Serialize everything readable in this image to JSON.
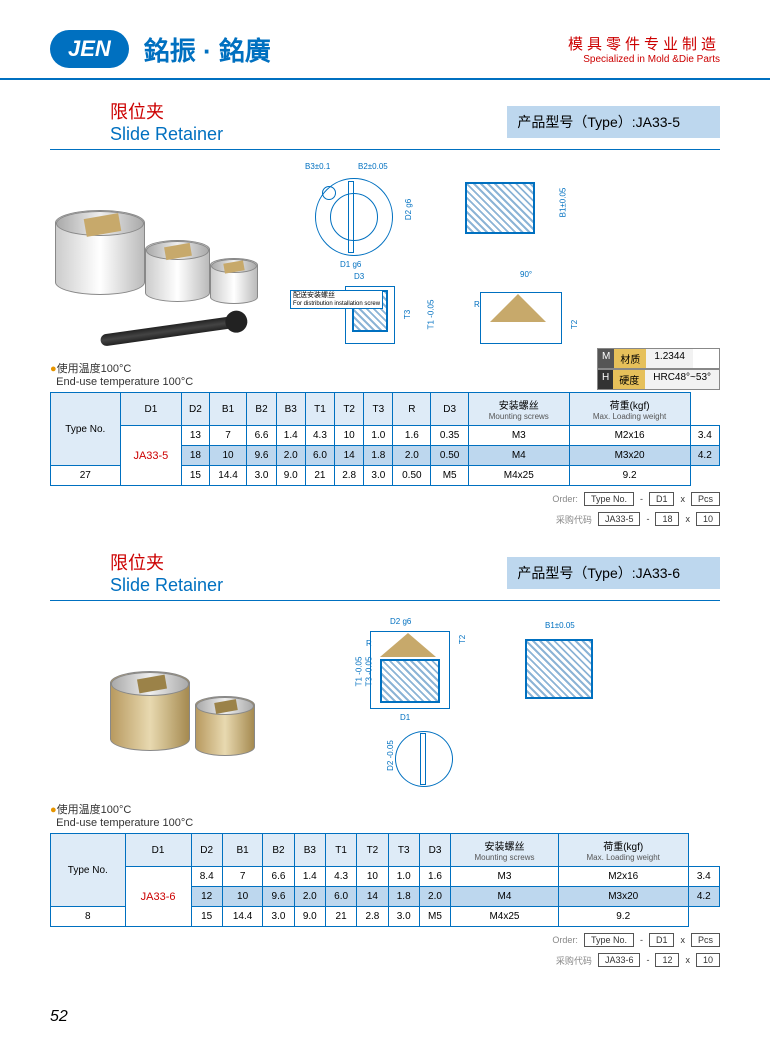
{
  "header": {
    "logo": "JEN",
    "company": "銘振 · 銘廣",
    "tagline_cn": "模具零件专业制造",
    "tagline_en": "Specialized in Mold &Die Parts"
  },
  "material_box": {
    "m_tag": "M",
    "m_label": "材质",
    "m_value": "1.2344",
    "h_tag": "H",
    "h_label": "硬度",
    "h_value": "HRC48°~53°"
  },
  "product_a": {
    "title_cn": "限位夹",
    "title_en": "Slide  Retainer",
    "type_label": "产品型号（Type）:JA33-5",
    "temp_note_cn": "使用温度100°C",
    "temp_note_en": "End-use temperature 100°C",
    "dia_labels": {
      "b3": "B3±0.1",
      "b2": "B2±0.05",
      "d2g6": "D2 g6",
      "d1g6": "D1 g6",
      "b1": "B1±0.05",
      "d3": "D3",
      "t3": "T3",
      "t1": "T1 -0.05",
      "ninety": "90°",
      "r": "R",
      "t2": "T2",
      "dist_cn": "配送安装螺丝",
      "dist_en": "For distribution\ninstallation screw"
    },
    "table": {
      "headers": [
        "Type No.",
        "D1",
        "D2",
        "B1",
        "B2",
        "B3",
        "T1",
        "T2",
        "T3",
        "R",
        "D3",
        "安装螺丝",
        "荷重(kgf)"
      ],
      "sub_headers": {
        "11": "Mounting screws",
        "12": "Max. Loading weight"
      },
      "type_no": "JA33-5",
      "rows": [
        [
          "13",
          "7",
          "6.6",
          "1.4",
          "4.3",
          "10",
          "1.0",
          "1.6",
          "0.35",
          "M3",
          "M2x16",
          "3.4"
        ],
        [
          "18",
          "10",
          "9.6",
          "2.0",
          "6.0",
          "14",
          "1.8",
          "2.0",
          "0.50",
          "M4",
          "M3x20",
          "4.2"
        ],
        [
          "27",
          "15",
          "14.4",
          "3.0",
          "9.0",
          "21",
          "2.8",
          "3.0",
          "0.50",
          "M5",
          "M4x25",
          "9.2"
        ]
      ],
      "hl_index": 1
    },
    "order": {
      "label1": "Order:",
      "b1": "Type No.",
      "dash1": "-",
      "b2": "D1",
      "x1": "x",
      "b3": "Pcs",
      "label2": "采购代码",
      "e1": "JA33-5",
      "dash2": "-",
      "e2": "18",
      "x2": "x",
      "e3": "10"
    }
  },
  "product_b": {
    "title_cn": "限位夹",
    "title_en": "Slide  Retainer",
    "type_label": "产品型号（Type）:JA33-6",
    "temp_note_cn": "使用温度100°C",
    "temp_note_en": "End-use temperature 100°C",
    "dia_labels": {
      "d2g6": "D2 g6",
      "r": "R",
      "t2": "T2",
      "b1": "B1±0.05",
      "t1": "T1 -0.05",
      "t3": "T3 -0.05",
      "d1": "D1",
      "d2s": "D2 -0.05"
    },
    "table": {
      "headers": [
        "Type No.",
        "D1",
        "D2",
        "B1",
        "B2",
        "B3",
        "T1",
        "T2",
        "T3",
        "D3",
        "安装螺丝",
        "荷重(kgf)"
      ],
      "sub_headers": {
        "10": "Mounting screws",
        "11": "Max. Loading weight"
      },
      "type_no": "JA33-6",
      "rows": [
        [
          "8.4",
          "7",
          "6.6",
          "1.4",
          "4.3",
          "10",
          "1.0",
          "1.6",
          "M3",
          "M2x16",
          "3.4"
        ],
        [
          "12",
          "10",
          "9.6",
          "2.0",
          "6.0",
          "14",
          "1.8",
          "2.0",
          "M4",
          "M3x20",
          "4.2"
        ],
        [
          "8",
          "15",
          "14.4",
          "3.0",
          "9.0",
          "21",
          "2.8",
          "3.0",
          "M5",
          "M4x25",
          "9.2"
        ]
      ],
      "hl_index": 1
    },
    "order": {
      "label1": "Order:",
      "b1": "Type No.",
      "dash1": "-",
      "b2": "D1",
      "x1": "x",
      "b3": "Pcs",
      "label2": "采购代码",
      "e1": "JA33-6",
      "dash2": "-",
      "e2": "12",
      "x2": "x",
      "e3": "10"
    }
  },
  "page_num": "52",
  "colors": {
    "blue": "#0070c0",
    "header_border": "#0070c0",
    "red": "#c00",
    "th_bg": "#deebf7",
    "hl_bg": "#bdd7ee",
    "type_bg": "#bdd7ee"
  }
}
